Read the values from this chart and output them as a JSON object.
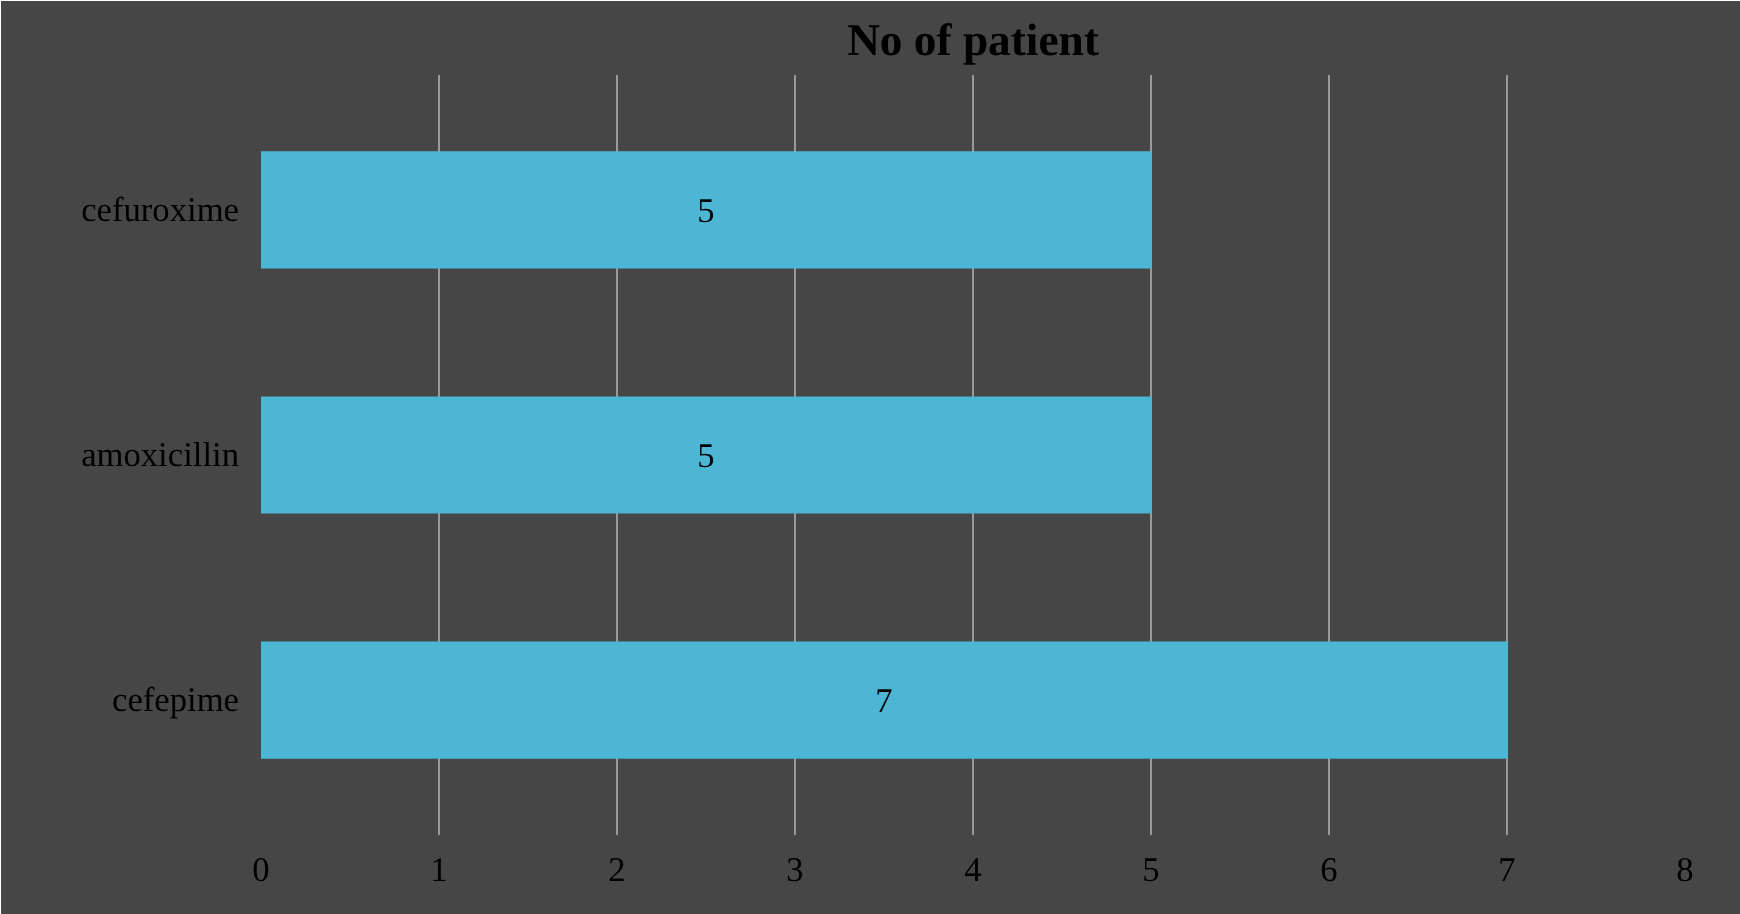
{
  "chart_data": {
    "type": "bar",
    "orientation": "horizontal",
    "title": "No of patient",
    "categories": [
      "cefuroxime",
      "amoxicillin",
      "cefepime"
    ],
    "values": [
      5,
      5,
      7
    ],
    "color": "#4cb6d4",
    "xlim": [
      0,
      8
    ],
    "xticks": [
      0,
      1,
      2,
      3,
      4,
      5,
      6,
      7,
      8
    ],
    "grid": "x",
    "data_labels": true
  }
}
